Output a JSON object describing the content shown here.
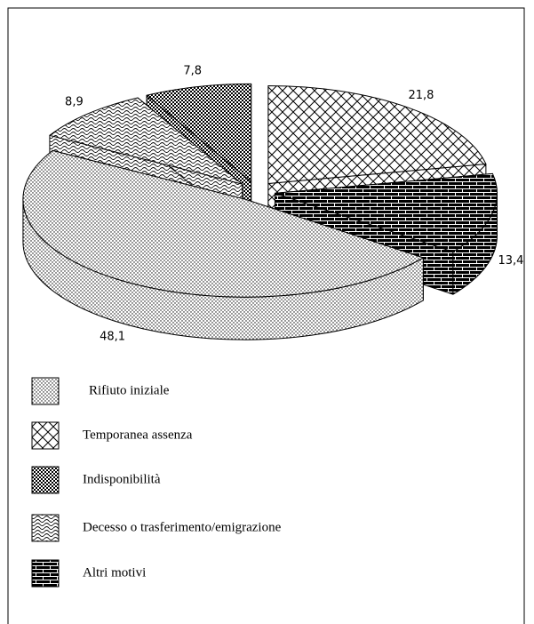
{
  "chart_data": {
    "type": "pie3d",
    "categories": [
      "Rifiuto iniziale",
      "Temporanea assenza",
      "Indisponibilità",
      "Decesso o trasferimento/emigrazione",
      "Altri motivi"
    ],
    "values": [
      48.1,
      21.8,
      7.8,
      8.9,
      13.4
    ],
    "value_labels": [
      "48,1",
      "21,8",
      "7,8",
      "8,9",
      "13,4"
    ]
  }
}
